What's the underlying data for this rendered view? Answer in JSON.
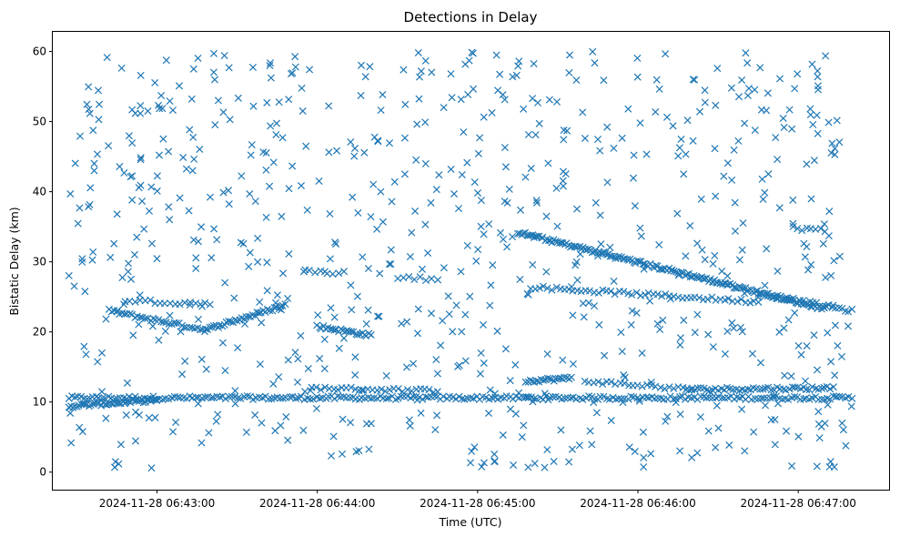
{
  "chart_data": {
    "type": "scatter",
    "title": "Detections in Delay",
    "xlabel": "Time (UTC)",
    "ylabel": "Bistatic Delay (km)",
    "x_ticks": [
      "2024-11-28 06:43:00",
      "2024-11-28 06:44:00",
      "2024-11-28 06:45:00",
      "2024-11-28 06:46:00",
      "2024-11-28 06:47:00"
    ],
    "y_ticks": [
      0,
      10,
      20,
      30,
      40,
      50,
      60
    ],
    "xlim": [
      "2024-11-28 06:42:21",
      "2024-11-28 06:47:34"
    ],
    "ylim": [
      -2.5,
      62.8
    ],
    "marker": "x",
    "grid": false,
    "legend": "none",
    "color": "#1f77b4",
    "series": [
      {
        "tracks": [
          {
            "x": [
              "2024-11-28 06:42:27",
              "2024-11-28 06:47:20"
            ],
            "y": [
              10.6,
              10.6
            ],
            "n": 260
          },
          {
            "x": [
              "2024-11-28 06:42:27",
              "2024-11-28 06:43:00"
            ],
            "y": [
              9.4,
              10.3
            ],
            "n": 45
          },
          {
            "x": [
              "2024-11-28 06:42:42",
              "2024-11-28 06:43:18"
            ],
            "y": [
              23.0,
              20.3
            ],
            "n": 38
          },
          {
            "x": [
              "2024-11-28 06:43:18",
              "2024-11-28 06:43:48"
            ],
            "y": [
              20.3,
              23.8
            ],
            "n": 38
          },
          {
            "x": [
              "2024-11-28 06:42:48",
              "2024-11-28 06:43:20"
            ],
            "y": [
              24.5,
              24.0
            ],
            "n": 18
          },
          {
            "x": [
              "2024-11-28 06:44:00",
              "2024-11-28 06:44:20"
            ],
            "y": [
              20.8,
              19.5
            ],
            "n": 26
          },
          {
            "x": [
              "2024-11-28 06:43:58",
              "2024-11-28 06:44:45"
            ],
            "y": [
              12.0,
              11.6
            ],
            "n": 30
          },
          {
            "x": [
              "2024-11-28 06:45:15",
              "2024-11-28 06:47:10"
            ],
            "y": [
              34.2,
              23.3
            ],
            "n": 170
          },
          {
            "x": [
              "2024-11-28 06:45:20",
              "2024-11-28 06:46:45"
            ],
            "y": [
              26.4,
              24.3
            ],
            "n": 55
          },
          {
            "x": [
              "2024-11-28 06:45:18",
              "2024-11-28 06:45:35"
            ],
            "y": [
              13.0,
              13.4
            ],
            "n": 22
          },
          {
            "x": [
              "2024-11-28 06:45:40",
              "2024-11-28 06:46:20"
            ],
            "y": [
              13.0,
              11.8
            ],
            "n": 25
          },
          {
            "x": [
              "2024-11-28 06:46:18",
              "2024-11-28 06:47:12"
            ],
            "y": [
              11.8,
              12.0
            ],
            "n": 50
          },
          {
            "x": [
              "2024-11-28 06:46:45",
              "2024-11-28 06:47:20"
            ],
            "y": [
              25.5,
              23.0
            ],
            "n": 30
          },
          {
            "x": [
              "2024-11-28 06:46:58",
              "2024-11-28 06:47:10"
            ],
            "y": [
              34.8,
              34.5
            ],
            "n": 8
          },
          {
            "x": [
              "2024-11-28 06:43:55",
              "2024-11-28 06:44:10"
            ],
            "y": [
              28.7,
              28.4
            ],
            "n": 8
          },
          {
            "x": [
              "2024-11-28 06:44:30",
              "2024-11-28 06:44:45"
            ],
            "y": [
              27.8,
              27.5
            ],
            "n": 8
          }
        ],
        "scattered_points": {
          "x": [
            "2024-11-28 06:42:27",
            "2024-11-28 06:47:20"
          ],
          "y": [
            0.5,
            60.0
          ],
          "n": 750
        }
      }
    ]
  }
}
